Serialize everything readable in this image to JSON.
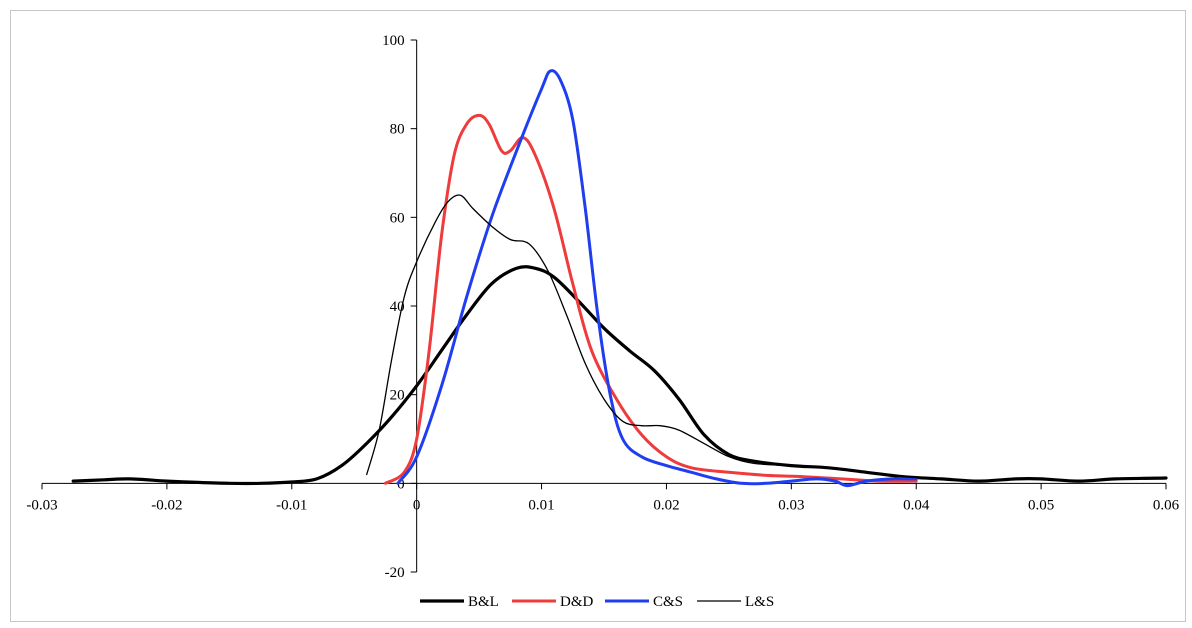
{
  "chart_data": {
    "type": "line",
    "title": "",
    "xlabel": "",
    "ylabel": "",
    "xlim": [
      -0.03,
      0.06
    ],
    "ylim": [
      -20,
      100
    ],
    "x_ticks": [
      "-0.03",
      "-0.02",
      "-0.01",
      "0",
      "0.01",
      "0.02",
      "0.03",
      "0.04",
      "0.05",
      "0.06"
    ],
    "y_ticks": [
      "-20",
      "0",
      "20",
      "40",
      "60",
      "80",
      "100"
    ],
    "grid": false,
    "legend_position": "bottom",
    "series": [
      {
        "name": "B&L",
        "color": "#000000",
        "style": "thick",
        "points": [
          [
            -0.0275,
            0.5
          ],
          [
            -0.025,
            0.8
          ],
          [
            -0.023,
            1.0
          ],
          [
            -0.02,
            0.5
          ],
          [
            -0.0175,
            0.2
          ],
          [
            -0.015,
            0.0
          ],
          [
            -0.0125,
            0.0
          ],
          [
            -0.01,
            0.3
          ],
          [
            -0.008,
            1.0
          ],
          [
            -0.006,
            4.0
          ],
          [
            -0.004,
            9.0
          ],
          [
            -0.002,
            15.0
          ],
          [
            0.0,
            22.0
          ],
          [
            0.002,
            30.0
          ],
          [
            0.004,
            38.0
          ],
          [
            0.006,
            45.0
          ],
          [
            0.008,
            48.5
          ],
          [
            0.0095,
            48.5
          ],
          [
            0.011,
            46.5
          ],
          [
            0.013,
            41.0
          ],
          [
            0.015,
            35.0
          ],
          [
            0.017,
            30.0
          ],
          [
            0.019,
            25.5
          ],
          [
            0.021,
            19.0
          ],
          [
            0.023,
            11.0
          ],
          [
            0.025,
            6.5
          ],
          [
            0.027,
            5.0
          ],
          [
            0.03,
            4.0
          ],
          [
            0.033,
            3.5
          ],
          [
            0.036,
            2.5
          ],
          [
            0.039,
            1.5
          ],
          [
            0.042,
            1.0
          ],
          [
            0.045,
            0.5
          ],
          [
            0.048,
            1.0
          ],
          [
            0.05,
            1.0
          ],
          [
            0.053,
            0.5
          ],
          [
            0.056,
            1.0
          ],
          [
            0.06,
            1.2
          ]
        ]
      },
      {
        "name": "D&D",
        "color": "#ef3b3b",
        "style": "medium",
        "points": [
          [
            -0.0025,
            0.0
          ],
          [
            -0.001,
            2.5
          ],
          [
            0.0,
            10.0
          ],
          [
            0.001,
            30.0
          ],
          [
            0.002,
            56.0
          ],
          [
            0.003,
            74.0
          ],
          [
            0.004,
            81.0
          ],
          [
            0.005,
            83.0
          ],
          [
            0.0058,
            81.0
          ],
          [
            0.0068,
            75.0
          ],
          [
            0.0075,
            75.0
          ],
          [
            0.0085,
            78.0
          ],
          [
            0.0095,
            74.0
          ],
          [
            0.011,
            62.0
          ],
          [
            0.0125,
            45.0
          ],
          [
            0.014,
            30.0
          ],
          [
            0.016,
            19.0
          ],
          [
            0.018,
            11.0
          ],
          [
            0.02,
            6.0
          ],
          [
            0.022,
            3.5
          ],
          [
            0.025,
            2.5
          ],
          [
            0.028,
            1.8
          ],
          [
            0.031,
            1.5
          ],
          [
            0.034,
            1.0
          ],
          [
            0.037,
            0.5
          ],
          [
            0.04,
            0.5
          ]
        ]
      },
      {
        "name": "C&S",
        "color": "#1f3ef0",
        "style": "medium",
        "points": [
          [
            -0.0015,
            0.0
          ],
          [
            0.0,
            6.0
          ],
          [
            0.002,
            22.0
          ],
          [
            0.004,
            42.0
          ],
          [
            0.006,
            60.0
          ],
          [
            0.008,
            75.0
          ],
          [
            0.01,
            89.0
          ],
          [
            0.0107,
            93.0
          ],
          [
            0.0115,
            91.0
          ],
          [
            0.0125,
            82.0
          ],
          [
            0.0135,
            62.0
          ],
          [
            0.0145,
            38.0
          ],
          [
            0.0155,
            20.0
          ],
          [
            0.0165,
            10.0
          ],
          [
            0.018,
            6.0
          ],
          [
            0.02,
            4.0
          ],
          [
            0.022,
            2.5
          ],
          [
            0.024,
            1.0
          ],
          [
            0.026,
            0.0
          ],
          [
            0.028,
            0.0
          ],
          [
            0.03,
            0.5
          ],
          [
            0.032,
            1.0
          ],
          [
            0.0335,
            0.5
          ],
          [
            0.0345,
            -0.5
          ],
          [
            0.036,
            0.5
          ],
          [
            0.038,
            1.0
          ],
          [
            0.04,
            1.0
          ]
        ]
      },
      {
        "name": "L&S",
        "color": "#000000",
        "style": "thin",
        "points": [
          [
            -0.004,
            2.0
          ],
          [
            -0.003,
            12.0
          ],
          [
            -0.002,
            28.0
          ],
          [
            -0.001,
            42.0
          ],
          [
            0.0,
            50.0
          ],
          [
            0.0015,
            59.0
          ],
          [
            0.0025,
            63.5
          ],
          [
            0.0035,
            65.0
          ],
          [
            0.0045,
            62.0
          ],
          [
            0.006,
            58.0
          ],
          [
            0.0075,
            55.0
          ],
          [
            0.009,
            54.0
          ],
          [
            0.0105,
            48.0
          ],
          [
            0.012,
            38.0
          ],
          [
            0.0135,
            27.0
          ],
          [
            0.015,
            19.0
          ],
          [
            0.0165,
            14.0
          ],
          [
            0.018,
            13.0
          ],
          [
            0.0195,
            13.0
          ],
          [
            0.021,
            12.0
          ],
          [
            0.023,
            9.0
          ],
          [
            0.025,
            6.0
          ],
          [
            0.027,
            4.5
          ],
          [
            0.03,
            4.0
          ],
          [
            0.033,
            3.5
          ],
          [
            0.036,
            2.5
          ],
          [
            0.039,
            1.5
          ],
          [
            0.042,
            1.0
          ]
        ]
      }
    ]
  }
}
